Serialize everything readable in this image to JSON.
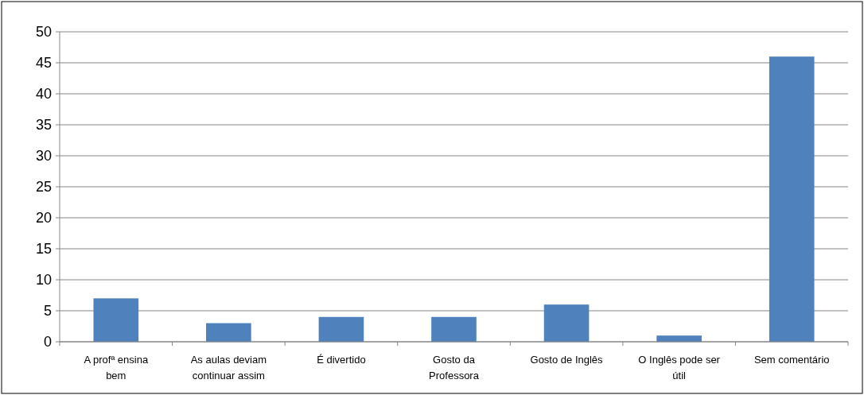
{
  "chart_data": {
    "type": "bar",
    "categories": [
      "A profª ensina bem",
      "As aulas deviam continuar assim",
      "É divertido",
      "Gosto da Professora",
      "Gosto de Inglês",
      "O Inglês pode ser útil",
      "Sem comentário"
    ],
    "values": [
      7,
      3,
      4,
      4,
      6,
      1,
      46
    ],
    "color": "#4f81bd",
    "ylim": [
      0,
      50
    ],
    "yticks": [
      0,
      5,
      10,
      15,
      20,
      25,
      30,
      35,
      40,
      45,
      50
    ],
    "grid": "y"
  }
}
